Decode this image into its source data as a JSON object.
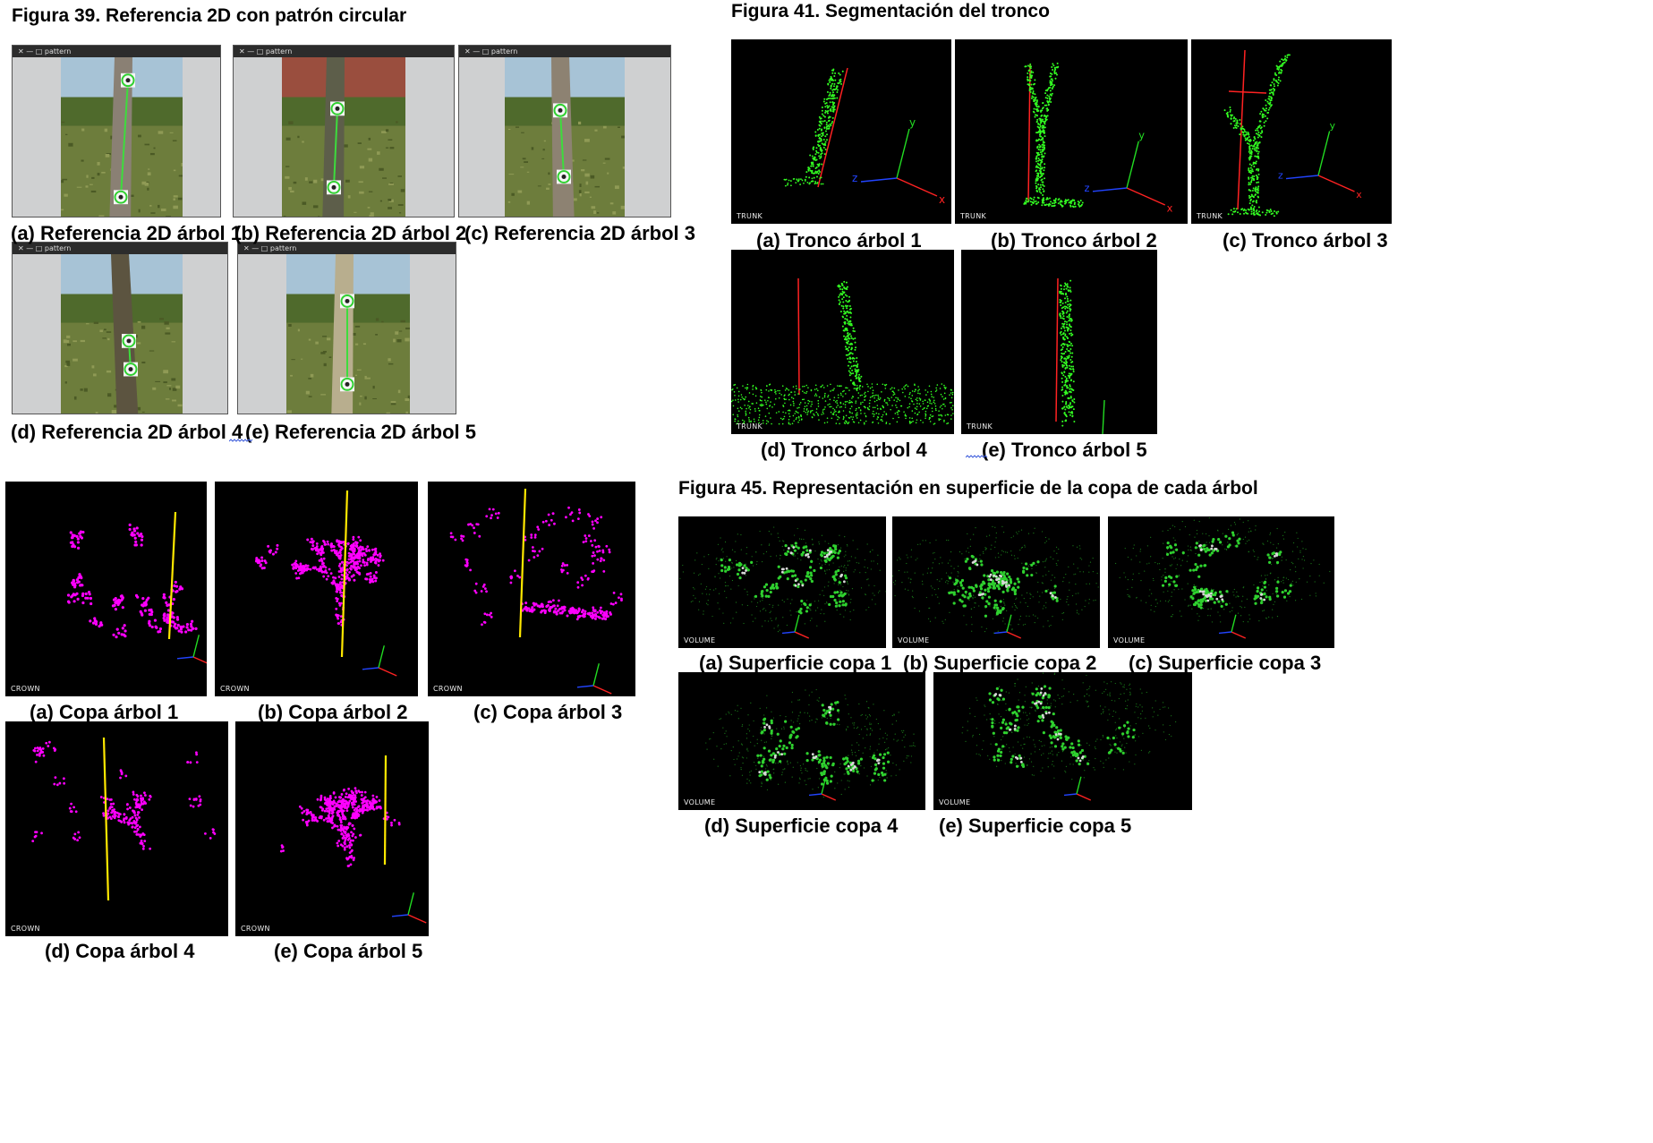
{
  "fig39": {
    "title": "Figura 39. Referencia 2D con patrón circular",
    "window_title": "pattern",
    "window_controls": "✕  —  □",
    "captions": [
      "(a) Referencia 2D árbol 1",
      "(b) Referencia 2D árbol 2",
      "(c) Referencia 2D árbol 3",
      "(d) Referencia 2D árbol 4",
      "(e) Referencia 2D árbol 5"
    ]
  },
  "fig41": {
    "title": "Figura 41. Segmentación del tronco",
    "viewer_label": "TRUNK",
    "captions": [
      "(a) Tronco árbol 1",
      "(b) Tronco árbol 2",
      "(c) Tronco árbol 3",
      "(d) Tronco árbol 4",
      "(e) Tronco árbol 5"
    ]
  },
  "crown": {
    "viewer_label": "CROWN",
    "captions": [
      "(a) Copa árbol 1",
      "(b) Copa árbol 2",
      "(c) Copa árbol 3",
      "(d) Copa árbol 4",
      "(e) Copa árbol 5"
    ]
  },
  "fig45": {
    "title": "Figura 45. Representación en superficie de la copa de cada árbol",
    "viewer_label": "VOLUME",
    "captions": [
      "(a) Superficie copa 1",
      "(b) Superficie copa 2",
      "(c) Superficie copa 3",
      "(d) Superficie copa 4",
      "(e) Superficie copa 5"
    ]
  },
  "colors": {
    "trunk_points": "#33ff22",
    "crown_points": "#ff00ff",
    "reference_line": "#ffe800",
    "axis_x": "#ff2222",
    "axis_y": "#22dd22",
    "axis_z": "#2244ff",
    "viewer_bg": "#000000",
    "window_bg": "#cfd0d1"
  },
  "icons": {
    "pattern_marker": "circular-pattern-target-icon",
    "axes": "xyz-axes-gizmo-icon"
  },
  "axis_letters": {
    "x": "x",
    "y": "y",
    "z": "z"
  }
}
